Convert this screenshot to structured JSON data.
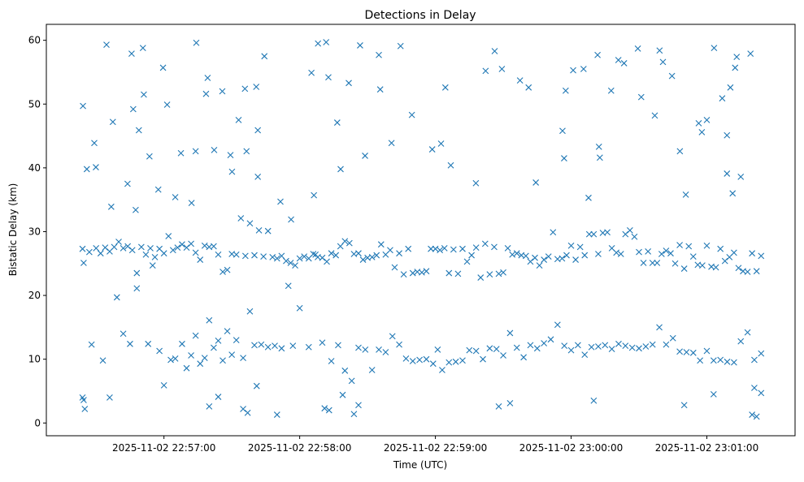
{
  "chart_data": {
    "type": "scatter",
    "title": "Detections in Delay",
    "xlabel": "Time (UTC)",
    "ylabel": "Bistatic Delay (km)",
    "x_units": "seconds after 2025-11-02 22:56:00",
    "xlim": [
      8,
      339
    ],
    "ylim": [
      -2,
      62.5
    ],
    "y_ticks": [
      0,
      10,
      20,
      30,
      40,
      50,
      60
    ],
    "x_ticks": [
      {
        "value": 60,
        "label": "2025-11-02 22:57:00"
      },
      {
        "value": 120,
        "label": "2025-11-02 22:58:00"
      },
      {
        "value": 180,
        "label": "2025-11-02 22:59:00"
      },
      {
        "value": 240,
        "label": "2025-11-02 23:00:00"
      },
      {
        "value": 300,
        "label": "2025-11-02 23:01:00"
      }
    ],
    "marker": "x",
    "color": "#1f77b4",
    "grid": false,
    "points": [
      [
        24.2,
        49.7
      ],
      [
        25.9,
        39.8
      ],
      [
        29.2,
        43.9
      ],
      [
        29.9,
        40.1
      ],
      [
        34.6,
        59.3
      ],
      [
        36.7,
        33.9
      ],
      [
        37.4,
        47.2
      ],
      [
        39.2,
        19.7
      ],
      [
        43.9,
        37.5
      ],
      [
        45.7,
        57.9
      ],
      [
        46.4,
        49.2
      ],
      [
        47.5,
        33.4
      ],
      [
        48.9,
        45.9
      ],
      [
        50.7,
        58.8
      ],
      [
        51.1,
        51.5
      ],
      [
        53.6,
        41.8
      ],
      [
        57.5,
        36.6
      ],
      [
        59.6,
        55.7
      ],
      [
        61.4,
        49.9
      ],
      [
        65,
        35.4
      ],
      [
        67.5,
        42.3
      ],
      [
        72.2,
        34.5
      ],
      [
        74.3,
        59.6
      ],
      [
        74,
        42.6
      ],
      [
        78.6,
        51.6
      ],
      [
        79.3,
        54.1
      ],
      [
        82.2,
        42.8
      ],
      [
        85.8,
        52
      ],
      [
        89.4,
        42
      ],
      [
        90.1,
        39.4
      ],
      [
        93,
        47.5
      ],
      [
        95.8,
        52.4
      ],
      [
        96.5,
        42.6
      ],
      [
        100.8,
        52.7
      ],
      [
        101.5,
        45.9
      ],
      [
        104.4,
        57.5
      ],
      [
        101.5,
        38.6
      ],
      [
        111.5,
        34.7
      ],
      [
        116.2,
        31.9
      ],
      [
        125.2,
        54.9
      ],
      [
        126.3,
        35.7
      ],
      [
        128.1,
        59.5
      ],
      [
        131.7,
        59.7
      ],
      [
        132.7,
        54.2
      ],
      [
        136.6,
        47.1
      ],
      [
        138.1,
        39.8
      ],
      [
        141.7,
        53.3
      ],
      [
        146.7,
        59.2
      ],
      [
        148.9,
        41.9
      ],
      [
        155,
        57.7
      ],
      [
        155.6,
        52.3
      ],
      [
        160.6,
        43.9
      ],
      [
        164.6,
        59.1
      ],
      [
        169.6,
        48.3
      ],
      [
        178.6,
        42.9
      ],
      [
        182.5,
        43.8
      ],
      [
        184.4,
        52.6
      ],
      [
        186.8,
        40.4
      ],
      [
        197.9,
        37.6
      ],
      [
        202.2,
        55.2
      ],
      [
        206.2,
        58.3
      ],
      [
        209.4,
        55.5
      ],
      [
        217.4,
        53.7
      ],
      [
        221.2,
        52.6
      ],
      [
        224.4,
        37.7
      ],
      [
        236.2,
        45.8
      ],
      [
        236.9,
        41.5
      ],
      [
        237.6,
        52.1
      ],
      [
        240.9,
        55.3
      ],
      [
        245.5,
        55.5
      ],
      [
        247.7,
        35.3
      ],
      [
        251.7,
        57.7
      ],
      [
        252.3,
        43.3
      ],
      [
        252.7,
        41.6
      ],
      [
        257.7,
        52.1
      ],
      [
        260.9,
        56.9
      ],
      [
        263.4,
        56.4
      ],
      [
        269.5,
        58.7
      ],
      [
        271,
        51.1
      ],
      [
        277,
        48.2
      ],
      [
        279.1,
        58.4
      ],
      [
        280.6,
        56.6
      ],
      [
        284.6,
        54.4
      ],
      [
        288.1,
        42.6
      ],
      [
        290.7,
        35.8
      ],
      [
        296.4,
        47
      ],
      [
        297.8,
        45.6
      ],
      [
        300,
        47.5
      ],
      [
        303.2,
        58.8
      ],
      [
        306.8,
        50.9
      ],
      [
        308.9,
        45.1
      ],
      [
        310.4,
        52.6
      ],
      [
        312.5,
        55.7
      ],
      [
        313.2,
        57.4
      ],
      [
        319.3,
        57.9
      ],
      [
        315,
        38.6
      ],
      [
        311.4,
        36
      ],
      [
        308.9,
        39.1
      ],
      [
        24,
        27.3
      ],
      [
        24.5,
        25.1
      ],
      [
        27,
        26.8
      ],
      [
        30,
        27.4
      ],
      [
        32,
        26.6
      ],
      [
        34,
        27.5
      ],
      [
        36,
        26.9
      ],
      [
        38,
        27.6
      ],
      [
        40,
        28.4
      ],
      [
        42,
        27.4
      ],
      [
        44,
        27.7
      ],
      [
        46,
        27.1
      ],
      [
        48,
        23.5
      ],
      [
        50,
        27.6
      ],
      [
        52,
        26.4
      ],
      [
        54,
        27.4
      ],
      [
        56,
        26
      ],
      [
        58,
        27.3
      ],
      [
        60,
        26.6
      ],
      [
        62,
        29.3
      ],
      [
        64,
        27.1
      ],
      [
        66,
        27.5
      ],
      [
        68,
        28
      ],
      [
        70,
        27.5
      ],
      [
        72,
        28.1
      ],
      [
        74,
        26.7
      ],
      [
        76,
        25.6
      ],
      [
        78,
        27.8
      ],
      [
        80,
        27.6
      ],
      [
        82,
        27.7
      ],
      [
        84,
        26.4
      ],
      [
        86,
        23.7
      ],
      [
        88,
        24
      ],
      [
        90,
        26.5
      ],
      [
        92,
        26.4
      ],
      [
        94,
        32.1
      ],
      [
        96,
        26.2
      ],
      [
        98,
        31.3
      ],
      [
        100,
        26.3
      ],
      [
        102,
        30.2
      ],
      [
        104,
        26.1
      ],
      [
        106,
        30.1
      ],
      [
        108,
        26
      ],
      [
        110,
        25.8
      ],
      [
        112,
        26.2
      ],
      [
        114,
        25.4
      ],
      [
        116,
        25.1
      ],
      [
        118,
        24.7
      ],
      [
        120,
        25.8
      ],
      [
        122,
        26.1
      ],
      [
        124,
        25.8
      ],
      [
        126,
        26.5
      ],
      [
        128,
        26
      ],
      [
        130,
        25.9
      ],
      [
        132,
        25.3
      ],
      [
        134,
        26.6
      ],
      [
        136,
        26.3
      ],
      [
        138,
        27.7
      ],
      [
        140,
        28.5
      ],
      [
        142,
        28.2
      ],
      [
        144,
        26.5
      ],
      [
        146,
        26.6
      ],
      [
        148,
        25.6
      ],
      [
        150,
        25.9
      ],
      [
        152,
        26
      ],
      [
        154,
        26.3
      ],
      [
        156,
        28
      ],
      [
        158,
        26.4
      ],
      [
        160,
        27.1
      ],
      [
        162,
        24.4
      ],
      [
        164,
        26.6
      ],
      [
        166,
        23.3
      ],
      [
        168,
        27.3
      ],
      [
        170,
        23.5
      ],
      [
        172,
        23.7
      ],
      [
        174,
        23.6
      ],
      [
        176,
        23.8
      ],
      [
        178,
        27.3
      ],
      [
        180,
        27.3
      ],
      [
        182,
        27.1
      ],
      [
        184,
        27.4
      ],
      [
        186,
        23.5
      ],
      [
        188,
        27.2
      ],
      [
        190,
        23.4
      ],
      [
        192,
        27.3
      ],
      [
        194,
        25.3
      ],
      [
        196,
        26.3
      ],
      [
        198,
        27.5
      ],
      [
        200,
        22.8
      ],
      [
        202,
        28.1
      ],
      [
        204,
        23.3
      ],
      [
        206,
        27.6
      ],
      [
        208,
        23.4
      ],
      [
        210,
        23.6
      ],
      [
        212,
        27.4
      ],
      [
        214,
        26.4
      ],
      [
        216,
        26.6
      ],
      [
        218,
        26.3
      ],
      [
        220,
        26.2
      ],
      [
        222,
        25.3
      ],
      [
        224,
        25.9
      ],
      [
        226,
        24.7
      ],
      [
        228,
        25.6
      ],
      [
        230,
        26.1
      ],
      [
        232,
        29.9
      ],
      [
        234,
        25.7
      ],
      [
        236,
        25.8
      ],
      [
        238,
        26.3
      ],
      [
        240,
        27.8
      ],
      [
        242,
        25.6
      ],
      [
        244,
        27.6
      ],
      [
        246,
        26.3
      ],
      [
        248,
        29.6
      ],
      [
        250,
        29.6
      ],
      [
        252,
        26.5
      ],
      [
        254,
        29.8
      ],
      [
        256,
        29.9
      ],
      [
        258,
        27.4
      ],
      [
        260,
        26.7
      ],
      [
        262,
        26.5
      ],
      [
        264,
        29.6
      ],
      [
        266,
        30.2
      ],
      [
        268,
        29.2
      ],
      [
        270,
        26.8
      ],
      [
        272,
        25.1
      ],
      [
        274,
        26.9
      ],
      [
        276,
        25.1
      ],
      [
        278,
        25.1
      ],
      [
        280,
        26.5
      ],
      [
        282,
        27
      ],
      [
        284,
        26.6
      ],
      [
        286,
        25
      ],
      [
        288,
        27.9
      ],
      [
        290,
        24.2
      ],
      [
        292,
        27.7
      ],
      [
        294,
        26.1
      ],
      [
        296,
        24.8
      ],
      [
        298,
        24.7
      ],
      [
        300,
        27.8
      ],
      [
        302,
        24.5
      ],
      [
        304,
        24.4
      ],
      [
        306,
        27.3
      ],
      [
        308,
        25.4
      ],
      [
        310,
        26
      ],
      [
        312,
        26.7
      ],
      [
        314,
        24.3
      ],
      [
        316,
        23.8
      ],
      [
        318,
        23.7
      ],
      [
        320,
        26.6
      ],
      [
        322,
        23.8
      ],
      [
        324,
        26.2
      ],
      [
        28,
        12.3
      ],
      [
        33,
        9.8
      ],
      [
        42,
        14
      ],
      [
        45,
        12.4
      ],
      [
        48,
        21.1
      ],
      [
        53,
        12.4
      ],
      [
        55,
        24.7
      ],
      [
        58,
        11.3
      ],
      [
        60,
        5.9
      ],
      [
        63,
        9.9
      ],
      [
        65,
        10.1
      ],
      [
        68,
        12.4
      ],
      [
        70,
        8.6
      ],
      [
        72,
        10.6
      ],
      [
        74,
        13.7
      ],
      [
        76,
        9.3
      ],
      [
        78,
        10.2
      ],
      [
        80,
        16.1
      ],
      [
        82,
        11.8
      ],
      [
        84,
        12.9
      ],
      [
        86,
        9.8
      ],
      [
        88,
        14.4
      ],
      [
        90,
        10.7
      ],
      [
        92,
        13
      ],
      [
        95,
        10.2
      ],
      [
        98,
        17.5
      ],
      [
        100,
        12.2
      ],
      [
        103,
        12.3
      ],
      [
        106,
        11.9
      ],
      [
        109,
        12.1
      ],
      [
        112,
        11.7
      ],
      [
        115,
        21.5
      ],
      [
        117,
        12.1
      ],
      [
        120,
        18
      ],
      [
        124,
        11.9
      ],
      [
        127,
        26.4
      ],
      [
        130,
        12.6
      ],
      [
        134,
        9.7
      ],
      [
        137,
        12.2
      ],
      [
        140,
        8.2
      ],
      [
        143,
        6.6
      ],
      [
        146,
        11.8
      ],
      [
        149,
        11.5
      ],
      [
        152,
        8.3
      ],
      [
        155,
        11.5
      ],
      [
        158,
        11.1
      ],
      [
        161,
        13.6
      ],
      [
        164,
        12.3
      ],
      [
        167,
        10.1
      ],
      [
        170,
        9.7
      ],
      [
        173,
        9.9
      ],
      [
        176,
        10
      ],
      [
        179,
        9.3
      ],
      [
        181,
        11.5
      ],
      [
        183,
        8.3
      ],
      [
        186,
        9.5
      ],
      [
        189,
        9.6
      ],
      [
        192,
        9.8
      ],
      [
        195,
        11.4
      ],
      [
        198,
        11.3
      ],
      [
        201,
        10
      ],
      [
        204,
        11.7
      ],
      [
        207,
        11.6
      ],
      [
        210,
        10.6
      ],
      [
        213,
        14.1
      ],
      [
        216,
        11.8
      ],
      [
        219,
        10.3
      ],
      [
        222,
        12.2
      ],
      [
        225,
        11.7
      ],
      [
        228,
        12.5
      ],
      [
        231,
        13.1
      ],
      [
        234,
        15.4
      ],
      [
        237,
        12.1
      ],
      [
        240,
        11.4
      ],
      [
        243,
        12.2
      ],
      [
        246,
        10.7
      ],
      [
        249,
        11.9
      ],
      [
        252,
        12
      ],
      [
        255,
        12.2
      ],
      [
        258,
        11.6
      ],
      [
        261,
        12.4
      ],
      [
        264,
        12.1
      ],
      [
        267,
        11.8
      ],
      [
        270,
        11.7
      ],
      [
        273,
        12
      ],
      [
        276,
        12.3
      ],
      [
        279,
        15
      ],
      [
        282,
        12.3
      ],
      [
        285,
        13.3
      ],
      [
        288,
        11.2
      ],
      [
        291,
        11.1
      ],
      [
        294,
        11
      ],
      [
        297,
        9.8
      ],
      [
        300,
        11.3
      ],
      [
        303,
        9.8
      ],
      [
        306,
        9.9
      ],
      [
        309,
        9.6
      ],
      [
        312,
        9.5
      ],
      [
        315,
        12.8
      ],
      [
        318,
        14.2
      ],
      [
        321,
        9.9
      ],
      [
        324,
        10.9
      ],
      [
        24,
        4
      ],
      [
        24.5,
        3.6
      ],
      [
        25,
        2.2
      ],
      [
        36,
        4
      ],
      [
        80,
        2.6
      ],
      [
        84,
        4.1
      ],
      [
        95,
        2.2
      ],
      [
        97,
        1.6
      ],
      [
        101,
        5.8
      ],
      [
        110,
        1.3
      ],
      [
        131,
        2.3
      ],
      [
        133,
        2
      ],
      [
        144,
        1.4
      ],
      [
        146,
        2.8
      ],
      [
        139,
        4.4
      ],
      [
        208,
        2.6
      ],
      [
        213,
        3.1
      ],
      [
        250,
        3.5
      ],
      [
        290,
        2.8
      ],
      [
        303,
        4.5
      ],
      [
        320,
        1.3
      ],
      [
        322,
        1
      ],
      [
        324,
        4.7
      ],
      [
        321,
        5.5
      ]
    ]
  }
}
